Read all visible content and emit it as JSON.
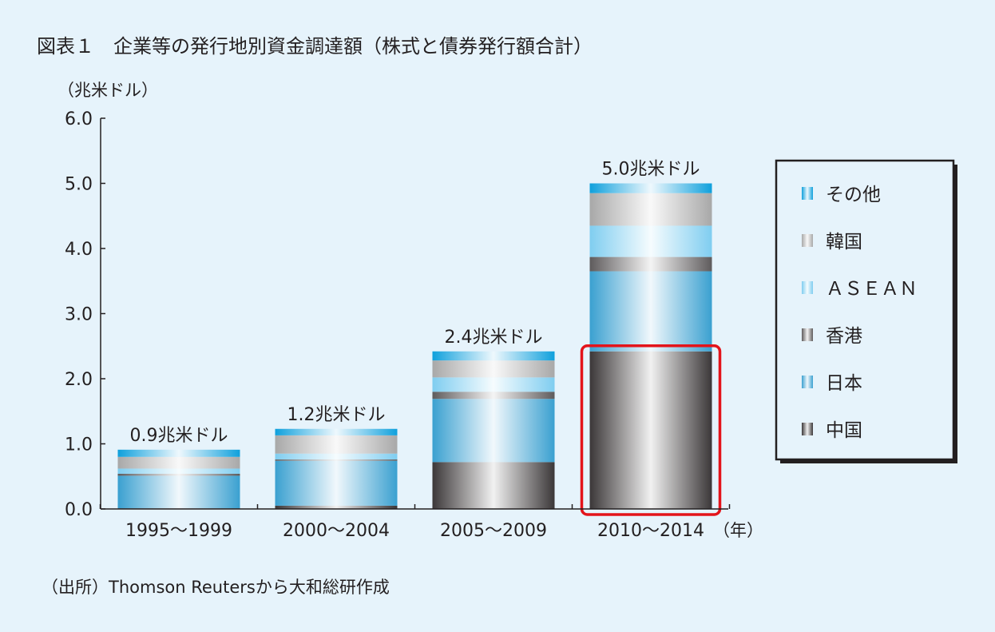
{
  "title": "図表１　企業等の発行地別資金調達額（株式と債券発行額合計）",
  "source": "（出所）Thomson Reutersから大和総研作成",
  "chart_data": {
    "type": "bar",
    "stacked": true,
    "ylabel": "（兆米ドル）",
    "xlabel_unit": "（年）",
    "ylim": [
      0,
      6
    ],
    "yticks": [
      "0.0",
      "1.0",
      "2.0",
      "3.0",
      "4.0",
      "5.0",
      "6.0"
    ],
    "categories": [
      "1995～1999",
      "2000～2004",
      "2005～2009",
      "2010～2014"
    ],
    "totals": [
      "0.9兆米ドル",
      "1.2兆米ドル",
      "2.4兆米ドル",
      "5.0兆米ドル"
    ],
    "series": [
      {
        "name": "中国",
        "color": "#3b3738",
        "values": [
          0.01,
          0.05,
          0.72,
          2.42
        ]
      },
      {
        "name": "日本",
        "color": "#3aa0d0",
        "values": [
          0.5,
          0.69,
          0.97,
          1.23
        ]
      },
      {
        "name": "香港",
        "color": "#5e5b5c",
        "values": [
          0.03,
          0.02,
          0.11,
          0.22
        ]
      },
      {
        "name": "ＡＳＥＡＮ",
        "color": "#7fcdf0",
        "values": [
          0.08,
          0.09,
          0.22,
          0.48
        ]
      },
      {
        "name": "韓国",
        "color": "#a8a8a8",
        "values": [
          0.18,
          0.28,
          0.26,
          0.5
        ]
      },
      {
        "name": "その他",
        "color": "#0fa0dc",
        "values": [
          0.11,
          0.1,
          0.14,
          0.15
        ]
      }
    ],
    "legend_position": "right",
    "highlight": {
      "category_index": 3,
      "series_index": 0,
      "color": "#e3141b"
    },
    "grid": false
  }
}
